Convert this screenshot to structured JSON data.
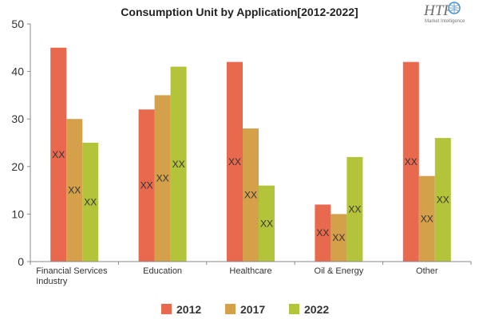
{
  "logo": {
    "text": "HTF",
    "subtext": "Market Intelligence"
  },
  "chart_data": {
    "type": "bar",
    "title": "Consumption Unit by  Application[2012-2022]",
    "xlabel": "",
    "ylabel": "",
    "ylim": [
      0,
      50
    ],
    "yticks": [
      0,
      10,
      20,
      30,
      40,
      50
    ],
    "grid": false,
    "legend_position": "bottom",
    "categories": [
      "Financial Services Industry",
      "Education",
      "Healthcare",
      "Oil & Energy",
      "Other"
    ],
    "category_lines": [
      [
        "Financial Services",
        "Industry"
      ],
      [
        "Education"
      ],
      [
        "Healthcare"
      ],
      [
        "Oil & Energy"
      ],
      [
        "Other"
      ]
    ],
    "series": [
      {
        "name": "2012",
        "color": "#e8694e",
        "values": [
          45,
          32,
          42,
          12,
          42
        ],
        "labels": [
          "XX",
          "XX",
          "XX",
          "XX",
          "XX"
        ]
      },
      {
        "name": "2017",
        "color": "#d4a04a",
        "values": [
          30,
          35,
          28,
          10,
          18
        ],
        "labels": [
          "XX",
          "XX",
          "XX",
          "XX",
          "XX"
        ]
      },
      {
        "name": "2022",
        "color": "#b3c43a",
        "values": [
          25,
          41,
          16,
          22,
          26
        ],
        "labels": [
          "XX",
          "XX",
          "XX",
          "XX",
          "XX"
        ]
      }
    ]
  }
}
